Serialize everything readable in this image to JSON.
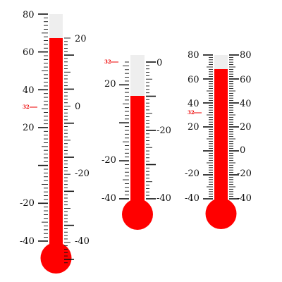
{
  "colors": {
    "mercury": "#ff0000",
    "tube": "#eeeeee",
    "tick": "#111111",
    "reference_mark": "#ee0000",
    "background": "#ffffff"
  },
  "reference_label": "32",
  "thermometers": [
    {
      "id": "tall",
      "left_scale": {
        "unit": "F",
        "range": [
          -40,
          80
        ],
        "labels": [
          "80",
          "60",
          "40",
          "20",
          "-20",
          "-40"
        ]
      },
      "right_scale": {
        "unit": "C",
        "labels": [
          "20",
          "0",
          "-20",
          "-40"
        ]
      },
      "reading_f": 68
    },
    {
      "id": "medium",
      "left_scale": {
        "unit": "F",
        "range": [
          -40,
          32
        ],
        "labels": [
          "20",
          "-20",
          "-40"
        ]
      },
      "right_scale": {
        "unit": "C",
        "labels": [
          "0",
          "-20",
          "-40"
        ]
      },
      "reading_f": 13
    },
    {
      "id": "short",
      "left_scale": {
        "unit": "F",
        "range": [
          -40,
          80
        ],
        "labels": [
          "80",
          "60",
          "40",
          "20",
          "-20",
          "-40"
        ]
      },
      "right_scale": {
        "unit": "F",
        "labels": [
          "80",
          "60",
          "40",
          "20",
          "0",
          "-20",
          "-40"
        ]
      },
      "reading_f": 69
    }
  ]
}
